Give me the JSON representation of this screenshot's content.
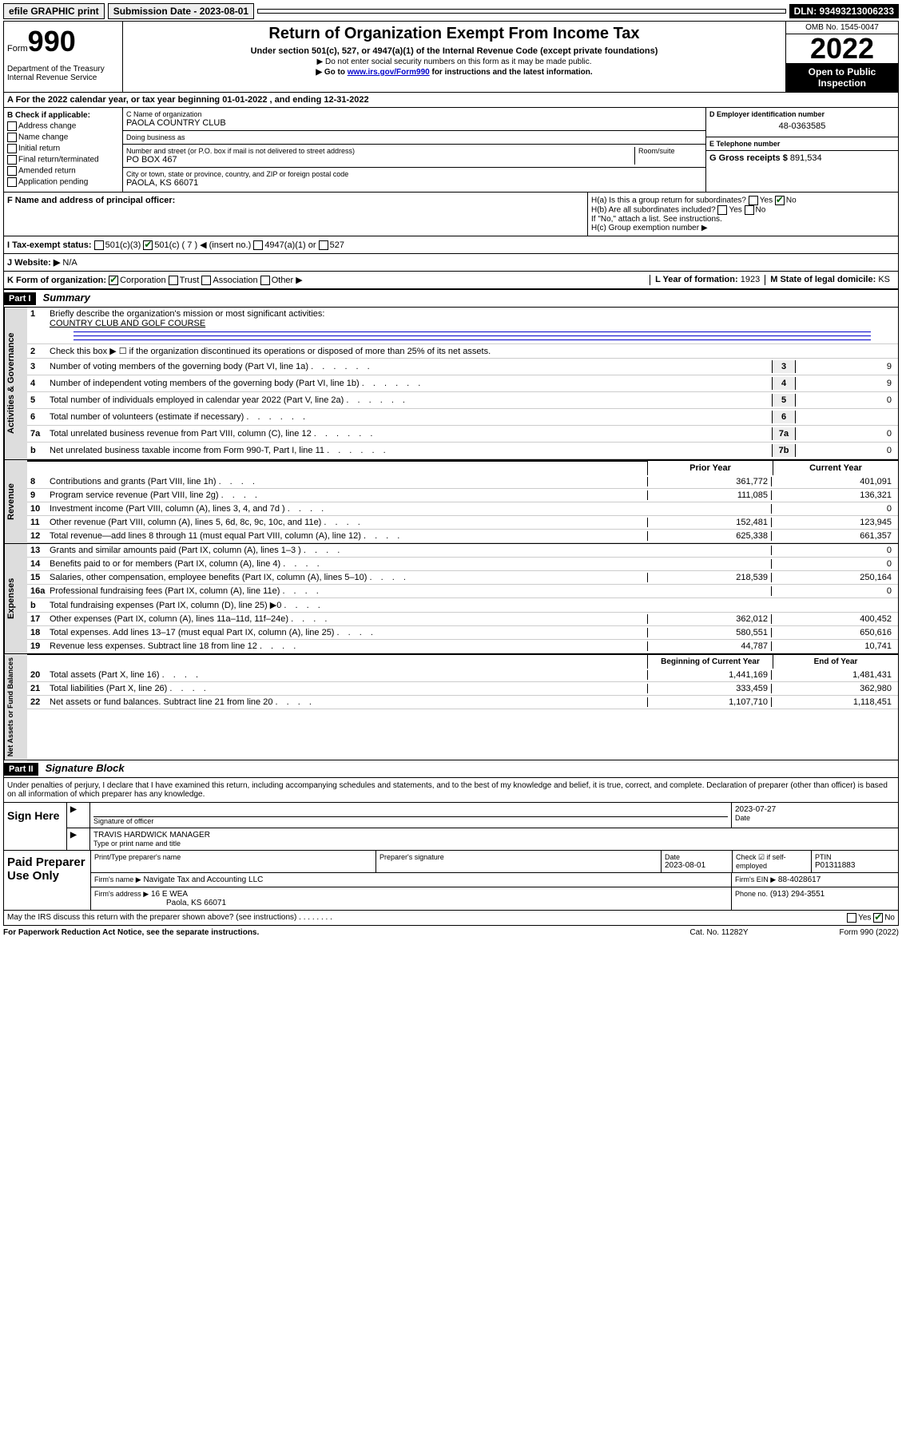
{
  "topbar": {
    "efile": "efile GRAPHIC print",
    "submission_label": "Submission Date - 2023-08-01",
    "dln": "DLN: 93493213006233"
  },
  "header": {
    "form_label": "Form",
    "form_number": "990",
    "dept": "Department of the Treasury\nInternal Revenue Service",
    "title": "Return of Organization Exempt From Income Tax",
    "subtitle": "Under section 501(c), 527, or 4947(a)(1) of the Internal Revenue Code (except private foundations)",
    "note1": "▶ Do not enter social security numbers on this form as it may be made public.",
    "note2_pre": "▶ Go to ",
    "note2_link": "www.irs.gov/Form990",
    "note2_post": " for instructions and the latest information.",
    "omb": "OMB No. 1545-0047",
    "year": "2022",
    "inspection": "Open to Public Inspection"
  },
  "A": {
    "text": "A For the 2022 calendar year, or tax year beginning 01-01-2022   , and ending 12-31-2022"
  },
  "B": {
    "label": "B Check if applicable:",
    "items": [
      "Address change",
      "Name change",
      "Initial return",
      "Final return/terminated",
      "Amended return",
      "Application pending"
    ]
  },
  "C": {
    "name_label": "C Name of organization",
    "name": "PAOLA COUNTRY CLUB",
    "dba_label": "Doing business as",
    "dba": "",
    "addr_label": "Number and street (or P.O. box if mail is not delivered to street address)",
    "room_label": "Room/suite",
    "addr": "PO BOX 467",
    "city_label": "City or town, state or province, country, and ZIP or foreign postal code",
    "city": "PAOLA, KS  66071"
  },
  "D": {
    "label": "D Employer identification number",
    "value": "48-0363585"
  },
  "E": {
    "label": "E Telephone number",
    "value": ""
  },
  "G": {
    "label": "G Gross receipts $",
    "value": "891,534"
  },
  "F": {
    "label": "F  Name and address of principal officer:",
    "value": ""
  },
  "H": {
    "a": "H(a)  Is this a group return for subordinates?",
    "a_yes": "Yes",
    "a_no": "No",
    "b": "H(b)  Are all subordinates included?",
    "b_note": "If \"No,\" attach a list. See instructions.",
    "c": "H(c)  Group exemption number ▶"
  },
  "I": {
    "label": "I  Tax-exempt status:",
    "opt1": "501(c)(3)",
    "opt2": "501(c) ( 7 ) ◀ (insert no.)",
    "opt3": "4947(a)(1) or",
    "opt4": "527"
  },
  "J": {
    "label": "J  Website: ▶",
    "value": "N/A"
  },
  "K": {
    "label": "K Form of organization:",
    "opts": [
      "Corporation",
      "Trust",
      "Association",
      "Other ▶"
    ],
    "checked": 0
  },
  "L": {
    "label": "L Year of formation:",
    "value": "1923"
  },
  "M": {
    "label": "M State of legal domicile:",
    "value": "KS"
  },
  "part1": {
    "header": "Part I",
    "title": "Summary"
  },
  "summary": {
    "line1_label": "Briefly describe the organization's mission or most significant activities:",
    "line1_value": "COUNTRY CLUB AND GOLF COURSE",
    "line2": "Check this box ▶ ☐  if the organization discontinued its operations or disposed of more than 25% of its net assets.",
    "lines_gov": [
      {
        "n": "3",
        "d": "Number of voting members of the governing body (Part VI, line 1a)",
        "box": "3",
        "v": "9"
      },
      {
        "n": "4",
        "d": "Number of independent voting members of the governing body (Part VI, line 1b)",
        "box": "4",
        "v": "9"
      },
      {
        "n": "5",
        "d": "Total number of individuals employed in calendar year 2022 (Part V, line 2a)",
        "box": "5",
        "v": "0"
      },
      {
        "n": "6",
        "d": "Total number of volunteers (estimate if necessary)",
        "box": "6",
        "v": ""
      },
      {
        "n": "7a",
        "d": "Total unrelated business revenue from Part VIII, column (C), line 12",
        "box": "7a",
        "v": "0"
      },
      {
        "n": "b",
        "d": "Net unrelated business taxable income from Form 990-T, Part I, line 11",
        "box": "7b",
        "v": "0"
      }
    ],
    "col_prior": "Prior Year",
    "col_current": "Current Year",
    "lines_rev": [
      {
        "n": "8",
        "d": "Contributions and grants (Part VIII, line 1h)",
        "p": "361,772",
        "c": "401,091"
      },
      {
        "n": "9",
        "d": "Program service revenue (Part VIII, line 2g)",
        "p": "111,085",
        "c": "136,321"
      },
      {
        "n": "10",
        "d": "Investment income (Part VIII, column (A), lines 3, 4, and 7d )",
        "p": "",
        "c": "0"
      },
      {
        "n": "11",
        "d": "Other revenue (Part VIII, column (A), lines 5, 6d, 8c, 9c, 10c, and 11e)",
        "p": "152,481",
        "c": "123,945"
      },
      {
        "n": "12",
        "d": "Total revenue—add lines 8 through 11 (must equal Part VIII, column (A), line 12)",
        "p": "625,338",
        "c": "661,357"
      }
    ],
    "lines_exp": [
      {
        "n": "13",
        "d": "Grants and similar amounts paid (Part IX, column (A), lines 1–3 )",
        "p": "",
        "c": "0"
      },
      {
        "n": "14",
        "d": "Benefits paid to or for members (Part IX, column (A), line 4)",
        "p": "",
        "c": "0"
      },
      {
        "n": "15",
        "d": "Salaries, other compensation, employee benefits (Part IX, column (A), lines 5–10)",
        "p": "218,539",
        "c": "250,164"
      },
      {
        "n": "16a",
        "d": "Professional fundraising fees (Part IX, column (A), line 11e)",
        "p": "",
        "c": "0"
      },
      {
        "n": "b",
        "d": "Total fundraising expenses (Part IX, column (D), line 25) ▶0",
        "p": "",
        "c": ""
      },
      {
        "n": "17",
        "d": "Other expenses (Part IX, column (A), lines 11a–11d, 11f–24e)",
        "p": "362,012",
        "c": "400,452"
      },
      {
        "n": "18",
        "d": "Total expenses. Add lines 13–17 (must equal Part IX, column (A), line 25)",
        "p": "580,551",
        "c": "650,616"
      },
      {
        "n": "19",
        "d": "Revenue less expenses. Subtract line 18 from line 12",
        "p": "44,787",
        "c": "10,741"
      }
    ],
    "col_begin": "Beginning of Current Year",
    "col_end": "End of Year",
    "lines_net": [
      {
        "n": "20",
        "d": "Total assets (Part X, line 16)",
        "p": "1,441,169",
        "c": "1,481,431"
      },
      {
        "n": "21",
        "d": "Total liabilities (Part X, line 26)",
        "p": "333,459",
        "c": "362,980"
      },
      {
        "n": "22",
        "d": "Net assets or fund balances. Subtract line 21 from line 20",
        "p": "1,107,710",
        "c": "1,118,451"
      }
    ],
    "vlabels": {
      "gov": "Activities & Governance",
      "rev": "Revenue",
      "exp": "Expenses",
      "net": "Net Assets or Fund Balances"
    }
  },
  "part2": {
    "header": "Part II",
    "title": "Signature Block",
    "intro": "Under penalties of perjury, I declare that I have examined this return, including accompanying schedules and statements, and to the best of my knowledge and belief, it is true, correct, and complete. Declaration of preparer (other than officer) is based on all information of which preparer has any knowledge."
  },
  "sign": {
    "side": "Sign Here",
    "sig_label": "Signature of officer",
    "date_label": "Date",
    "date": "2023-07-27",
    "name": "TRAVIS HARDWICK MANAGER",
    "name_label": "Type or print name and title"
  },
  "prep": {
    "side": "Paid Preparer Use Only",
    "h1": "Print/Type preparer's name",
    "h2": "Preparer's signature",
    "h3_label": "Date",
    "h3": "2023-08-01",
    "h4_label": "Check ☑ if self-employed",
    "h5_label": "PTIN",
    "h5": "P01311883",
    "firm_label": "Firm's name    ▶",
    "firm": "Navigate Tax and Accounting LLC",
    "ein_label": "Firm's EIN ▶",
    "ein": "88-4028617",
    "addr_label": "Firm's address ▶",
    "addr1": "16 E WEA",
    "addr2": "Paola, KS  66071",
    "phone_label": "Phone no.",
    "phone": "(913) 294-3551"
  },
  "discuss": {
    "q": "May the IRS discuss this return with the preparer shown above? (see instructions)",
    "yes": "Yes",
    "no": "No"
  },
  "footer": {
    "left": "For Paperwork Reduction Act Notice, see the separate instructions.",
    "mid": "Cat. No. 11282Y",
    "right": "Form 990 (2022)"
  }
}
